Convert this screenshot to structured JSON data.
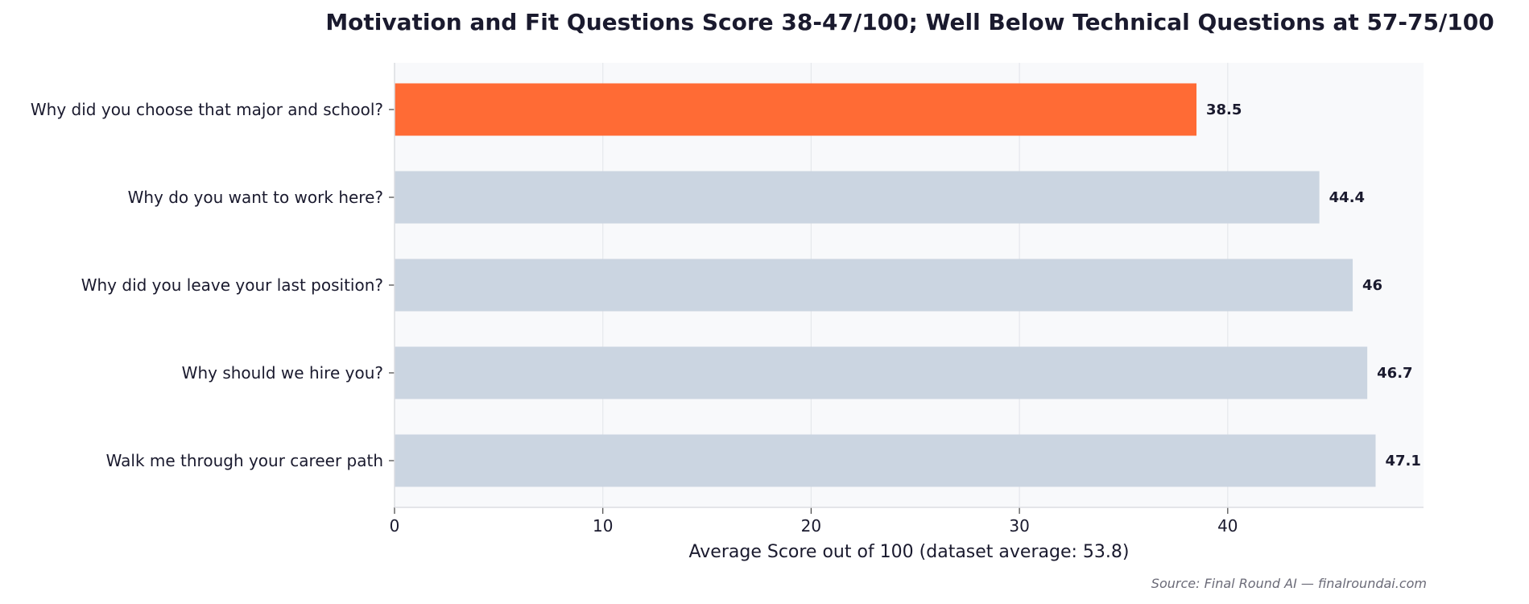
{
  "chart_data": {
    "type": "bar",
    "orientation": "horizontal",
    "title": "Motivation and Fit Questions Score 38-47/100; Well Below Technical Questions at 57-75/100",
    "categories": [
      "Why did you choose that major and school?",
      "Why do you want to work here?",
      "Why did you leave your last position?",
      "Why should we hire you?",
      "Walk me through your career path"
    ],
    "values": [
      38.5,
      44.4,
      46,
      46.7,
      47.1
    ],
    "value_labels": [
      "38.5",
      "44.4",
      "46",
      "46.7",
      "47.1"
    ],
    "highlight_index": 0,
    "colors": {
      "highlight": "#ff6b35",
      "default": "#cbd5e1",
      "plot_bg": "#f8f9fb",
      "grid": "#e6e8ec"
    },
    "xlabel": "Average Score out of 100 (dataset average: 53.8)",
    "ylabel": "",
    "xlim": [
      0,
      49.4
    ],
    "xticks": [
      0,
      10,
      20,
      30,
      40
    ],
    "grid": true
  },
  "source": "Source: Final Round AI — finalroundai.com"
}
